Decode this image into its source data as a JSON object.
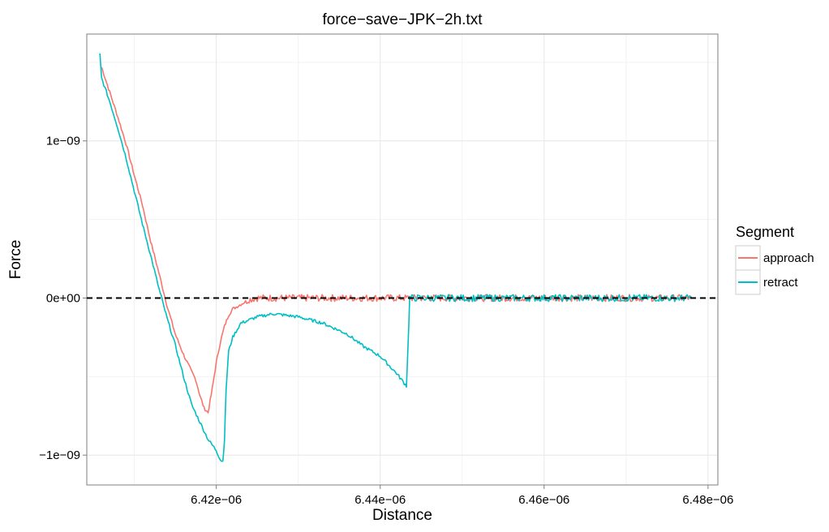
{
  "chart_data": {
    "type": "line",
    "title": "force−save−JPK−2h.txt",
    "xlabel": "Distance",
    "ylabel": "Force",
    "xlim": [
      6.4042e-06,
      6.4812e-06
    ],
    "ylim": [
      -1.19e-09,
      1.68e-09
    ],
    "x_ticks": [
      {
        "value": 6.42e-06,
        "label": "6.42e−06"
      },
      {
        "value": 6.44e-06,
        "label": "6.44e−06"
      },
      {
        "value": 6.46e-06,
        "label": "6.46e−06"
      },
      {
        "value": 6.48e-06,
        "label": "6.48e−06"
      }
    ],
    "y_ticks": [
      {
        "value": -1e-09,
        "label": "−1e−09"
      },
      {
        "value": 0,
        "label": "0e+00"
      },
      {
        "value": 1e-09,
        "label": "1e−09"
      }
    ],
    "grid": true,
    "reference_line": {
      "y": 0,
      "style": "dashed",
      "color": "#000000"
    },
    "legend": {
      "title": "Segment",
      "position": "right"
    },
    "series": [
      {
        "name": "approach",
        "color": "#F8766D",
        "x": [
          6.406e-06,
          6.407e-06,
          6.408e-06,
          6.409e-06,
          6.41e-06,
          6.411e-06,
          6.412e-06,
          6.413e-06,
          6.414e-06,
          6.415e-06,
          6.416e-06,
          6.417e-06,
          6.4175e-06,
          6.418e-06,
          6.4185e-06,
          6.419e-06,
          6.4195e-06,
          6.42e-06,
          6.4205e-06,
          6.421e-06,
          6.4215e-06,
          6.422e-06,
          6.423e-06,
          6.424e-06,
          6.425e-06,
          6.426e-06,
          6.427e-06,
          6.43e-06,
          6.44e-06,
          6.45e-06,
          6.46e-06,
          6.47e-06,
          6.478e-06
        ],
        "y": [
          1.47e-09,
          1.31e-09,
          1.15e-09,
          9.8e-10,
          7.8e-10,
          5.9e-10,
          3.6e-10,
          1.6e-10,
          -5e-11,
          -2.3e-10,
          -3.6e-10,
          -4.7e-10,
          -5.2e-10,
          -6.2e-10,
          -7e-10,
          -7.3e-10,
          -5.8e-10,
          -4.1e-10,
          -2.8e-10,
          -1.8e-10,
          -1.1e-10,
          -7e-11,
          -4e-11,
          -1e-11,
          0,
          0,
          0,
          0,
          0,
          0,
          0,
          0,
          0
        ]
      },
      {
        "name": "retract",
        "color": "#00BFC4",
        "x": [
          6.4058e-06,
          6.406e-06,
          6.407e-06,
          6.408e-06,
          6.409e-06,
          6.41e-06,
          6.411e-06,
          6.412e-06,
          6.413e-06,
          6.414e-06,
          6.415e-06,
          6.416e-06,
          6.417e-06,
          6.418e-06,
          6.419e-06,
          6.42e-06,
          6.4205e-06,
          6.4208e-06,
          6.421e-06,
          6.4212e-06,
          6.4215e-06,
          6.422e-06,
          6.423e-06,
          6.425e-06,
          6.427e-06,
          6.43e-06,
          6.433e-06,
          6.436e-06,
          6.438e-06,
          6.44e-06,
          6.442e-06,
          6.4432e-06,
          6.4434e-06,
          6.4436e-06,
          6.444e-06,
          6.45e-06,
          6.46e-06,
          6.47e-06,
          6.478e-06
        ],
        "y": [
          1.55e-09,
          1.4e-09,
          1.25e-09,
          1.08e-09,
          8.9e-10,
          6.8e-10,
          4.7e-10,
          2.7e-10,
          6e-11,
          -1.3e-10,
          -3e-10,
          -5e-10,
          -6.8e-10,
          -7.9e-10,
          -9e-10,
          -9.7e-10,
          -1.03e-09,
          -1.04e-09,
          -9e-10,
          -5.8e-10,
          -3.4e-10,
          -2.5e-10,
          -1.6e-10,
          -1.2e-10,
          -1e-10,
          -1.2e-10,
          -1.6e-10,
          -2.3e-10,
          -3.1e-10,
          -3.7e-10,
          -4.8e-10,
          -5.6e-10,
          -3e-10,
          0,
          0,
          0,
          0,
          0,
          0
        ]
      }
    ]
  }
}
